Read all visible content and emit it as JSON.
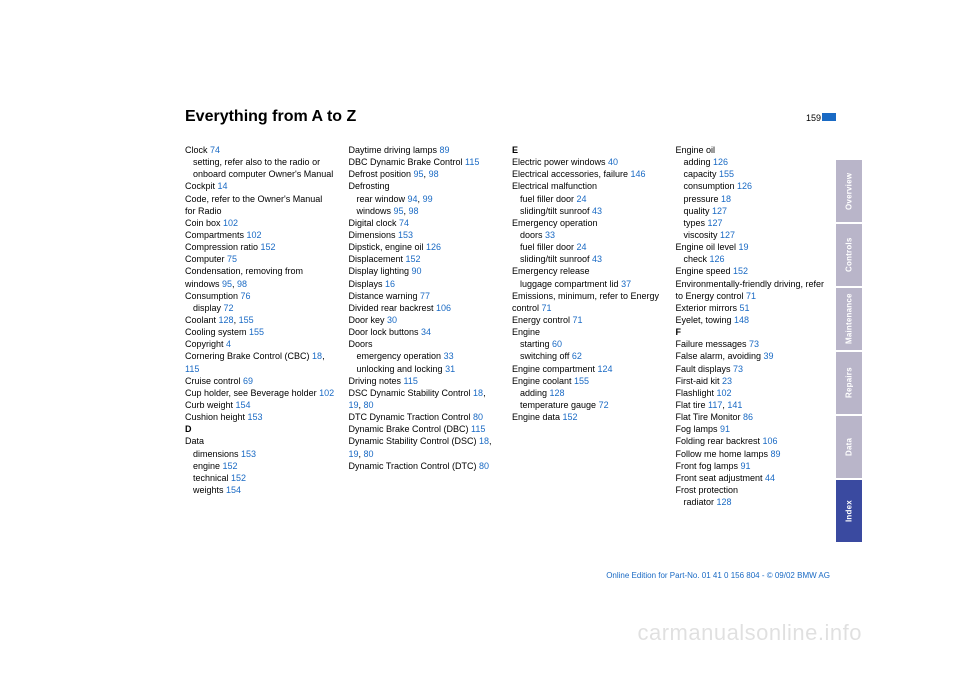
{
  "title": "Everything from A to Z",
  "page_number": "159",
  "footer": "Online Edition for Part-No. 01 41 0 156 804 - © 09/02 BMW AG",
  "watermark": "carmanualsonline.info",
  "link_color": "#1a6ac4",
  "tabs": [
    {
      "label": "Overview",
      "bg": "#b9b5c9"
    },
    {
      "label": "Controls",
      "bg": "#b9b5c9"
    },
    {
      "label": "Maintenance",
      "bg": "#b9b5c9"
    },
    {
      "label": "Repairs",
      "bg": "#b9b5c9"
    },
    {
      "label": "Data",
      "bg": "#b9b5c9"
    },
    {
      "label": "Index",
      "bg": "#3a4aa0"
    }
  ],
  "columns": [
    [
      {
        "t": "Clock ",
        "r": "74"
      },
      {
        "t": "setting, refer also to the radio or onboard computer Owner's Manual",
        "sub": 1
      },
      {
        "t": "Cockpit ",
        "r": "14"
      },
      {
        "t": "Code, refer to the Owner's Manual for Radio"
      },
      {
        "t": "Coin box ",
        "r": "102"
      },
      {
        "t": "Compartments ",
        "r": "102"
      },
      {
        "t": "Compression ratio ",
        "r": "152"
      },
      {
        "t": "Computer ",
        "r": "75"
      },
      {
        "t": "Condensation, removing from windows ",
        "r": "95",
        "r2": "98"
      },
      {
        "t": "Consumption ",
        "r": "76"
      },
      {
        "t": "display ",
        "r": "72",
        "sub": 1
      },
      {
        "t": "Coolant ",
        "r": "128",
        "r2": "155"
      },
      {
        "t": "Cooling system ",
        "r": "155"
      },
      {
        "t": "Copyright ",
        "r": "4"
      },
      {
        "t": "Cornering Brake Control (CBC) ",
        "r": "18",
        "r2": "115"
      },
      {
        "t": "Cruise control ",
        "r": "69"
      },
      {
        "t": "Cup holder, see Beverage holder ",
        "r": "102"
      },
      {
        "t": "Curb weight ",
        "r": "154"
      },
      {
        "t": "Cushion height ",
        "r": "153"
      },
      {
        "t": "D",
        "head": 1
      },
      {
        "t": "Data"
      },
      {
        "t": "dimensions ",
        "r": "153",
        "sub": 1
      },
      {
        "t": "engine ",
        "r": "152",
        "sub": 1
      },
      {
        "t": "technical ",
        "r": "152",
        "sub": 1
      },
      {
        "t": "weights ",
        "r": "154",
        "sub": 1
      }
    ],
    [
      {
        "t": "Daytime driving lamps ",
        "r": "89"
      },
      {
        "t": "DBC Dynamic Brake Control ",
        "r": "115"
      },
      {
        "t": "Defrost position ",
        "r": "95",
        "r2": "98"
      },
      {
        "t": "Defrosting"
      },
      {
        "t": "rear window ",
        "r": "94",
        "r2": "99",
        "sub": 1
      },
      {
        "t": "windows ",
        "r": "95",
        "r2": "98",
        "sub": 1
      },
      {
        "t": "Digital clock ",
        "r": "74"
      },
      {
        "t": "Dimensions ",
        "r": "153"
      },
      {
        "t": "Dipstick, engine oil ",
        "r": "126"
      },
      {
        "t": "Displacement ",
        "r": "152"
      },
      {
        "t": "Display lighting ",
        "r": "90"
      },
      {
        "t": "Displays ",
        "r": "16"
      },
      {
        "t": "Distance warning ",
        "r": "77"
      },
      {
        "t": "Divided rear backrest ",
        "r": "106"
      },
      {
        "t": "Door key ",
        "r": "30"
      },
      {
        "t": "Door lock buttons ",
        "r": "34"
      },
      {
        "t": "Doors"
      },
      {
        "t": "emergency operation ",
        "r": "33",
        "sub": 1
      },
      {
        "t": "unlocking and locking ",
        "r": "31",
        "sub": 1
      },
      {
        "t": "Driving notes ",
        "r": "115"
      },
      {
        "t": "DSC Dynamic Stability Control ",
        "r": "18",
        "r2": "19",
        "r3": "80"
      },
      {
        "t": "DTC Dynamic Traction Control ",
        "r": "80"
      },
      {
        "t": "Dynamic Brake Control (DBC) ",
        "r": "115"
      },
      {
        "t": "Dynamic Stability Control (DSC) ",
        "r": "18",
        "r2": "19",
        "r3": "80"
      },
      {
        "t": "Dynamic Traction Control (DTC) ",
        "r": "80"
      }
    ],
    [
      {
        "t": "E",
        "head": 1
      },
      {
        "t": "Electric power windows ",
        "r": "40"
      },
      {
        "t": "Electrical accessories, failure ",
        "r": "146"
      },
      {
        "t": "Electrical malfunction"
      },
      {
        "t": "fuel filler door ",
        "r": "24",
        "sub": 1
      },
      {
        "t": "sliding/tilt sunroof ",
        "r": "43",
        "sub": 1
      },
      {
        "t": "Emergency operation"
      },
      {
        "t": "doors ",
        "r": "33",
        "sub": 1
      },
      {
        "t": "fuel filler door ",
        "r": "24",
        "sub": 1
      },
      {
        "t": "sliding/tilt sunroof ",
        "r": "43",
        "sub": 1
      },
      {
        "t": "Emergency release"
      },
      {
        "t": "luggage compartment lid ",
        "r": "37",
        "sub": 1
      },
      {
        "t": "Emissions, minimum, refer to Energy control ",
        "r": "71"
      },
      {
        "t": "Energy control ",
        "r": "71"
      },
      {
        "t": "Engine"
      },
      {
        "t": "starting ",
        "r": "60",
        "sub": 1
      },
      {
        "t": "switching off ",
        "r": "62",
        "sub": 1
      },
      {
        "t": "Engine compartment ",
        "r": "124"
      },
      {
        "t": "Engine coolant ",
        "r": "155"
      },
      {
        "t": "adding ",
        "r": "128",
        "sub": 1
      },
      {
        "t": "temperature gauge ",
        "r": "72",
        "sub": 1
      },
      {
        "t": "Engine data ",
        "r": "152"
      }
    ],
    [
      {
        "t": "Engine oil"
      },
      {
        "t": "adding ",
        "r": "126",
        "sub": 1
      },
      {
        "t": "capacity ",
        "r": "155",
        "sub": 1
      },
      {
        "t": "consumption ",
        "r": "126",
        "sub": 1
      },
      {
        "t": "pressure ",
        "r": "18",
        "sub": 1
      },
      {
        "t": "quality ",
        "r": "127",
        "sub": 1
      },
      {
        "t": "types ",
        "r": "127",
        "sub": 1
      },
      {
        "t": "viscosity ",
        "r": "127",
        "sub": 1
      },
      {
        "t": "Engine oil level ",
        "r": "19"
      },
      {
        "t": "check ",
        "r": "126",
        "sub": 1
      },
      {
        "t": "Engine speed ",
        "r": "152"
      },
      {
        "t": "Environmentally-friendly driving, refer to Energy control ",
        "r": "71"
      },
      {
        "t": "Exterior mirrors ",
        "r": "51"
      },
      {
        "t": "Eyelet, towing ",
        "r": "148"
      },
      {
        "t": "F",
        "head": 1
      },
      {
        "t": "Failure messages ",
        "r": "73"
      },
      {
        "t": "False alarm, avoiding ",
        "r": "39"
      },
      {
        "t": "Fault displays ",
        "r": "73"
      },
      {
        "t": "First-aid kit ",
        "r": "23"
      },
      {
        "t": "Flashlight ",
        "r": "102"
      },
      {
        "t": "Flat tire ",
        "r": "117",
        "r2": "141"
      },
      {
        "t": "Flat Tire Monitor ",
        "r": "86"
      },
      {
        "t": "Fog lamps ",
        "r": "91"
      },
      {
        "t": "Folding rear backrest ",
        "r": "106"
      },
      {
        "t": "Follow me home lamps ",
        "r": "89"
      },
      {
        "t": "Front fog lamps ",
        "r": "91"
      },
      {
        "t": "Front seat adjustment ",
        "r": "44"
      },
      {
        "t": "Frost protection"
      },
      {
        "t": "radiator ",
        "r": "128",
        "sub": 1
      }
    ]
  ]
}
